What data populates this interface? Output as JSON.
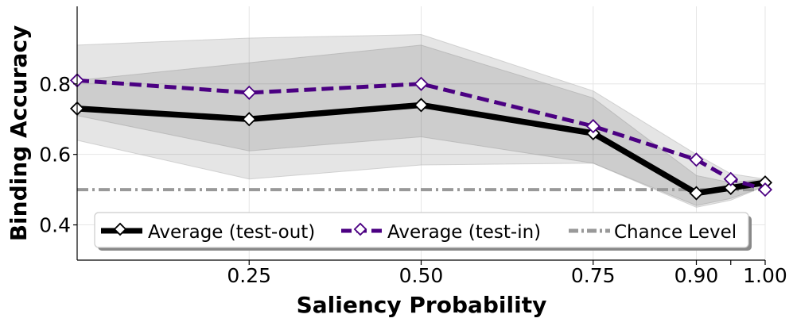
{
  "chart_data": {
    "type": "line",
    "title": "",
    "xlabel": "Saliency Probability",
    "ylabel": "Binding Accuracy",
    "xlim": [
      0.0,
      1.0
    ],
    "ylim": [
      0.3,
      1.02
    ],
    "x_ticks": [
      {
        "value": 0.25,
        "label": "0.25"
      },
      {
        "value": 0.5,
        "label": "0.50"
      },
      {
        "value": 0.75,
        "label": "0.75"
      },
      {
        "value": 0.9,
        "label": "0.90"
      },
      {
        "value": 1.0,
        "label": "1.00"
      }
    ],
    "x_minor_ticks": [
      0.95
    ],
    "y_ticks": [
      {
        "value": 0.4,
        "label": "0.4"
      },
      {
        "value": 0.6,
        "label": "0.6"
      },
      {
        "value": 0.8,
        "label": "0.8"
      }
    ],
    "grid": true,
    "legend_position": "bottom",
    "series": [
      {
        "name": "Average (test-out)",
        "color": "#000000",
        "style": "solid",
        "x": [
          0.0,
          0.25,
          0.5,
          0.75,
          0.9,
          0.95,
          1.0
        ],
        "values": [
          0.73,
          0.7,
          0.74,
          0.66,
          0.49,
          0.505,
          0.52
        ],
        "band_inner": {
          "lower": [
            0.71,
            0.61,
            0.65,
            0.575,
            0.455,
            0.475,
            0.51
          ],
          "upper": [
            0.81,
            0.86,
            0.91,
            0.76,
            0.54,
            0.52,
            0.53
          ]
        },
        "band_outer": {
          "lower": [
            0.64,
            0.53,
            0.57,
            0.575,
            0.45,
            0.47,
            0.51
          ],
          "upper": [
            0.91,
            0.93,
            0.94,
            0.78,
            0.6,
            0.545,
            0.53
          ]
        }
      },
      {
        "name": "Average (test-in)",
        "color": "#4b0082",
        "style": "dashed",
        "x": [
          0.0,
          0.25,
          0.5,
          0.75,
          0.9,
          0.95,
          1.0
        ],
        "values": [
          0.81,
          0.775,
          0.8,
          0.68,
          0.585,
          0.53,
          0.5
        ]
      }
    ],
    "reference_lines": [
      {
        "name": "Chance Level",
        "y": 0.5,
        "color": "#999999",
        "style": "dash-dot"
      }
    ]
  }
}
